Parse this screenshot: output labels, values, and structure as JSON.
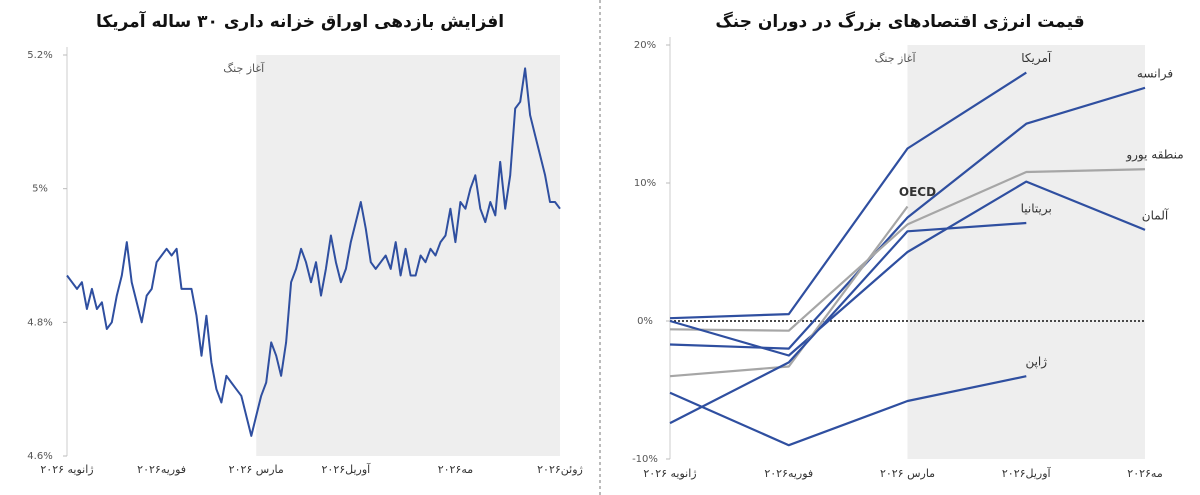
{
  "chart_data": [
    {
      "type": "line",
      "title": "افزایش بازدهی اوراق خزانه داری ۳۰ ساله آمریکا",
      "annotation": "آغاز جنگ",
      "color": "#2f4fa0",
      "categories": [
        "ژانویه ۲۰۲۶",
        null,
        null,
        null,
        null,
        null,
        null,
        null,
        null,
        null,
        null,
        null,
        null,
        null,
        null,
        null,
        null,
        null,
        null,
        "فوریه۲۰۲۶",
        null,
        null,
        null,
        null,
        null,
        null,
        null,
        null,
        null,
        null,
        null,
        null,
        null,
        null,
        null,
        null,
        null,
        null,
        "مارس ۲۰۲۶",
        null,
        null,
        null,
        null,
        null,
        null,
        null,
        null,
        null,
        null,
        null,
        null,
        null,
        null,
        null,
        null,
        null,
        "آوریل۲۰۲۶",
        null,
        null,
        null,
        null,
        null,
        null,
        null,
        null,
        null,
        null,
        null,
        null,
        null,
        null,
        null,
        null,
        null,
        null,
        null,
        null,
        null,
        "مه۲۰۲۶",
        null,
        null,
        null,
        null,
        null,
        null,
        null,
        null,
        null,
        null,
        null,
        null,
        null,
        null,
        null,
        null,
        null,
        null,
        null,
        null,
        "ژوئن۲۰۲۶"
      ],
      "values": [
        4.87,
        4.86,
        4.85,
        4.86,
        4.82,
        4.85,
        4.82,
        4.83,
        4.79,
        4.8,
        4.84,
        4.87,
        4.92,
        4.86,
        4.83,
        4.8,
        4.84,
        4.85,
        4.89,
        4.9,
        4.91,
        4.9,
        4.91,
        4.85,
        4.85,
        4.85,
        4.81,
        4.75,
        4.81,
        4.74,
        4.7,
        4.68,
        4.72,
        4.71,
        4.7,
        4.69,
        4.66,
        4.63,
        4.66,
        4.69,
        4.71,
        4.77,
        4.75,
        4.72,
        4.77,
        4.86,
        4.88,
        4.91,
        4.89,
        4.86,
        4.89,
        4.84,
        4.88,
        4.93,
        4.89,
        4.86,
        4.88,
        4.92,
        4.95,
        4.98,
        4.94,
        4.89,
        4.88,
        4.89,
        4.9,
        4.88,
        4.92,
        4.87,
        4.91,
        4.87,
        4.87,
        4.9,
        4.89,
        4.91,
        4.9,
        4.92,
        4.93,
        4.97,
        4.92,
        4.98,
        4.97,
        5.0,
        5.02,
        4.97,
        4.95,
        4.98,
        4.96,
        5.04,
        4.97,
        5.02,
        5.12,
        5.13,
        5.18,
        5.11,
        5.08,
        5.05,
        5.02,
        4.98,
        4.98,
        4.97
      ],
      "ylim": [
        4.6,
        5.2
      ],
      "yticks": [
        {
          "value": 4.6,
          "label": "4.6%"
        },
        {
          "value": 4.8,
          "label": "4.8%"
        },
        {
          "value": 5.0,
          "label": "5%"
        },
        {
          "value": 5.2,
          "label": "5.2%"
        }
      ]
    },
    {
      "type": "line",
      "title": "قیمت انرژی اقتصادهای بزرگ در دوران جنگ",
      "annotation": "آغاز جنگ",
      "categories": [
        "ژانویه ۲۰۲۶",
        "فوریه۲۰۲۶",
        "مارس ۲۰۲۶",
        "آوریل۲۰۲۶",
        "مه۲۰۲۶"
      ],
      "series": [
        {
          "name": "آمریکا",
          "color": "#2f4fa0",
          "values": [
            0.2,
            0.5,
            12.5,
            18,
            null
          ]
        },
        {
          "name": "فرانسه",
          "color": "#2f4fa0",
          "values": [
            -1.7,
            -2.0,
            7.5,
            14.3,
            16.9
          ]
        },
        {
          "name": "منطقه یورو",
          "color": "#a6a6a6",
          "values": [
            -0.6,
            -0.7,
            7.0,
            10.8,
            11.0
          ]
        },
        {
          "name": "آلمان",
          "color": "#2f4fa0",
          "values": [
            0,
            -2.5,
            5,
            10.1,
            6.6
          ]
        },
        {
          "name": "OECD",
          "color": "#a6a6a6",
          "values": [
            -4,
            -3.3,
            8.3,
            null,
            null
          ]
        },
        {
          "name": "بریتانیا",
          "color": "#2f4fa0",
          "values": [
            -7.4,
            -3,
            6.5,
            7.1,
            null
          ]
        },
        {
          "name": "ژاپن",
          "color": "#2f4fa0",
          "values": [
            -5.2,
            -9,
            -5.8,
            -4,
            null
          ]
        }
      ],
      "ylim": [
        -10,
        20
      ],
      "yticks": [
        {
          "value": -10,
          "label": "-10%"
        },
        {
          "value": 0,
          "label": "0%"
        },
        {
          "value": 10,
          "label": "10%"
        },
        {
          "value": 20,
          "label": "20%"
        }
      ],
      "zero_line": true
    }
  ]
}
